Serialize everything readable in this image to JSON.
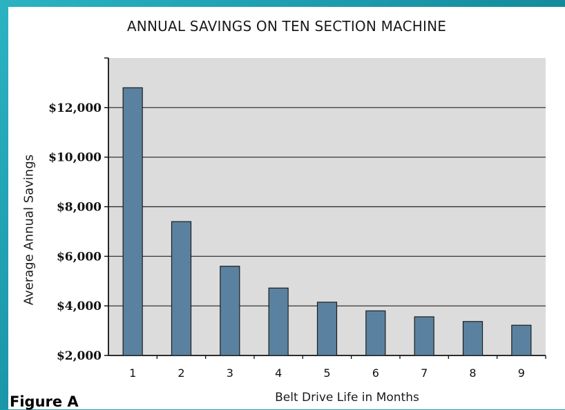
{
  "figure_label": "Figure A",
  "chart_data": {
    "type": "bar",
    "title": "ANNUAL SAVINGS ON TEN SECTION MACHINE",
    "xlabel": "Belt Drive Life in Months",
    "ylabel": "Average Annual Savings",
    "categories": [
      "1",
      "2",
      "3",
      "4",
      "5",
      "6",
      "7",
      "8",
      "9"
    ],
    "values": [
      12800,
      7400,
      5600,
      4720,
      4150,
      3800,
      3560,
      3370,
      3220
    ],
    "ylim": [
      2000,
      14000
    ],
    "yticks": [
      2000,
      4000,
      6000,
      8000,
      10000,
      12000
    ],
    "ytick_labels": [
      "$2,000",
      "$4,000",
      "$6,000",
      "$8,000",
      "$10,000",
      "$12,000"
    ],
    "grid": true,
    "colors": {
      "bar": "#5a82a0",
      "bar_stroke": "#1c1c1c",
      "plot_bg": "#dcdcdc",
      "grid": "#222222"
    }
  }
}
